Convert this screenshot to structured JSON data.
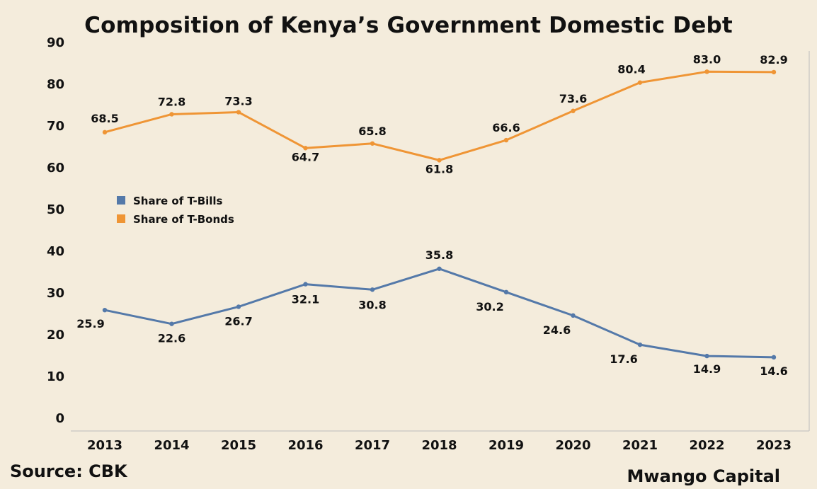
{
  "footer": {
    "source": "Source: CBK",
    "brand": "Mwango Capital"
  },
  "chart_data": {
    "type": "line",
    "title": "Composition of Kenya’s Government Domestic Debt",
    "xlabel": "",
    "ylabel": "",
    "x": [
      "2013",
      "2014",
      "2015",
      "2016",
      "2017",
      "2018",
      "2019",
      "2020",
      "2021",
      "2022",
      "2023"
    ],
    "yticks": [
      0,
      10,
      20,
      30,
      40,
      50,
      60,
      70,
      80,
      90
    ],
    "ylim": [
      0,
      90
    ],
    "grid": false,
    "legend_position": "left-middle",
    "series": [
      {
        "name": "Share of T-Bills",
        "color": "#5479a9",
        "values": [
          25.9,
          22.6,
          26.7,
          32.1,
          30.8,
          35.8,
          30.2,
          24.6,
          17.6,
          14.9,
          14.6
        ],
        "labels": [
          "25.9",
          "22.6",
          "26.7",
          "32.1",
          "30.8",
          "35.8",
          "30.2",
          "24.6",
          "17.6",
          "14.9",
          "14.6"
        ]
      },
      {
        "name": "Share of T-Bonds",
        "color": "#ef9535",
        "values": [
          68.5,
          72.8,
          73.3,
          64.7,
          65.8,
          61.8,
          66.6,
          73.6,
          80.4,
          83.0,
          82.9
        ],
        "labels": [
          "68.5",
          "72.8",
          "73.3",
          "64.7",
          "65.8",
          "61.8",
          "66.6",
          "73.6",
          "80.4",
          "83.0",
          "82.9"
        ]
      }
    ]
  }
}
